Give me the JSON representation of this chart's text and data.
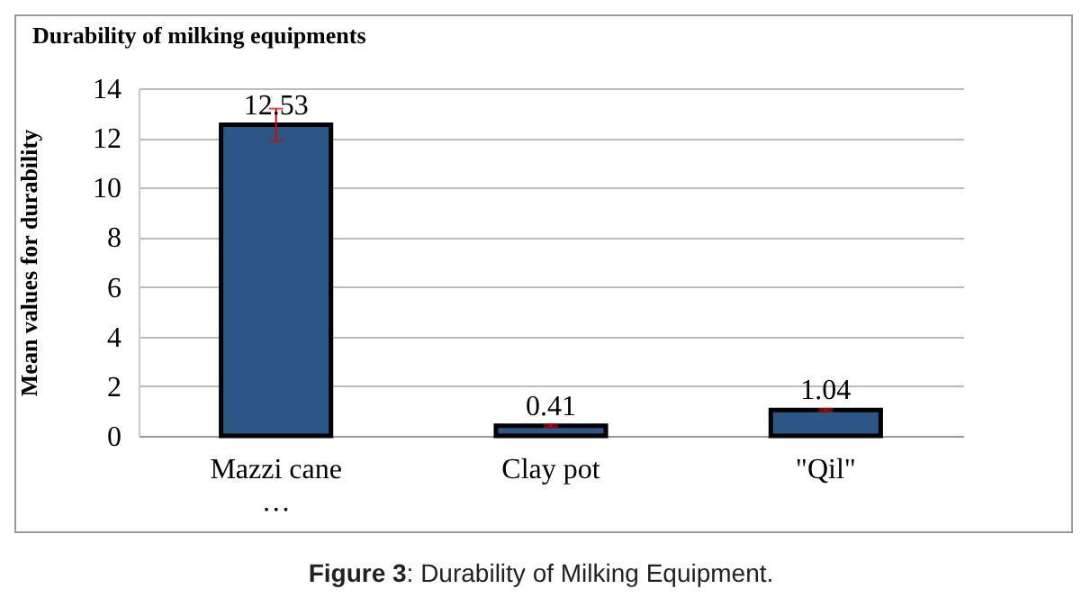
{
  "chart_data": {
    "type": "bar",
    "title": "Durability  of milking  equipments",
    "ylabel": "Mean values for durability",
    "categories": [
      "Mazzi cane …",
      "Clay pot",
      "\"Qil\""
    ],
    "values": [
      12.53,
      0.41,
      1.04
    ],
    "errors": [
      0.65,
      0.05,
      0.05
    ],
    "color": "#2b5685",
    "ylim": [
      0,
      14
    ],
    "yticks": [
      0,
      2,
      4,
      6,
      8,
      10,
      12,
      14
    ],
    "grid": "y",
    "data_labels": true,
    "annotations": [
      "Figure 3: Durability of Milking Equipment."
    ]
  }
}
